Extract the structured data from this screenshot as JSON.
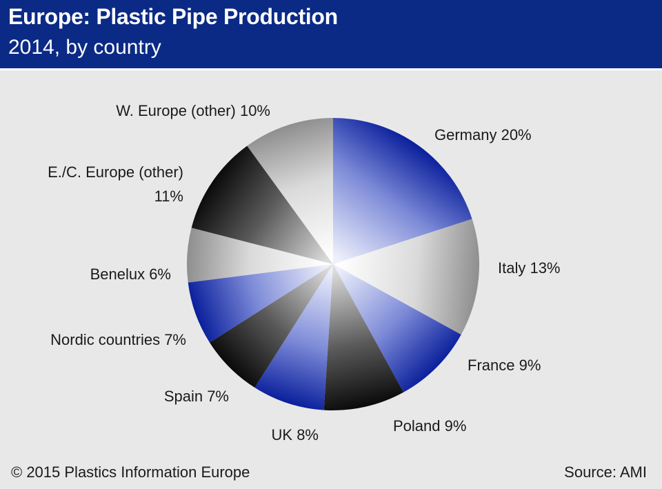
{
  "header": {
    "title": "Europe: Plastic Pipe Production",
    "subtitle": "2014, by country"
  },
  "chart_data": {
    "type": "pie",
    "start_angle_deg": 0,
    "direction": "clockwise",
    "slices": [
      {
        "label": "Germany",
        "value": 20,
        "text": "Germany 20%",
        "style": "blue"
      },
      {
        "label": "Italy",
        "value": 13,
        "text": "Italy 13%",
        "style": "gray"
      },
      {
        "label": "France",
        "value": 9,
        "text": "France 9%",
        "style": "blue"
      },
      {
        "label": "Poland",
        "value": 9,
        "text": "Poland 9%",
        "style": "black"
      },
      {
        "label": "UK",
        "value": 8,
        "text": "UK 8%",
        "style": "blue"
      },
      {
        "label": "Spain",
        "value": 7,
        "text": "Spain 7%",
        "style": "black"
      },
      {
        "label": "Nordic countries",
        "value": 7,
        "text": "Nordic countries 7%",
        "style": "blue"
      },
      {
        "label": "Benelux",
        "value": 6,
        "text": "Benelux 6%",
        "style": "gray"
      },
      {
        "label": "E./C. Europe (other)",
        "value": 11,
        "text_lines": [
          "E./C. Europe (other)",
          "11%"
        ],
        "style": "black"
      },
      {
        "label": "W. Europe (other)",
        "value": 10,
        "text": "W. Europe (other) 10%",
        "style": "gray"
      }
    ],
    "colors": {
      "blue": [
        "#eef0fb",
        "#7e8cd8",
        "#0a1f9c"
      ],
      "gray": [
        "#ffffff",
        "#dadada",
        "#8e8e8e"
      ],
      "black": [
        "#dcdcdc",
        "#5a5a5a",
        "#0a0a0a"
      ]
    }
  },
  "footer": {
    "copyright": "© 2015 Plastics Information Europe",
    "source": "Source: AMI"
  }
}
